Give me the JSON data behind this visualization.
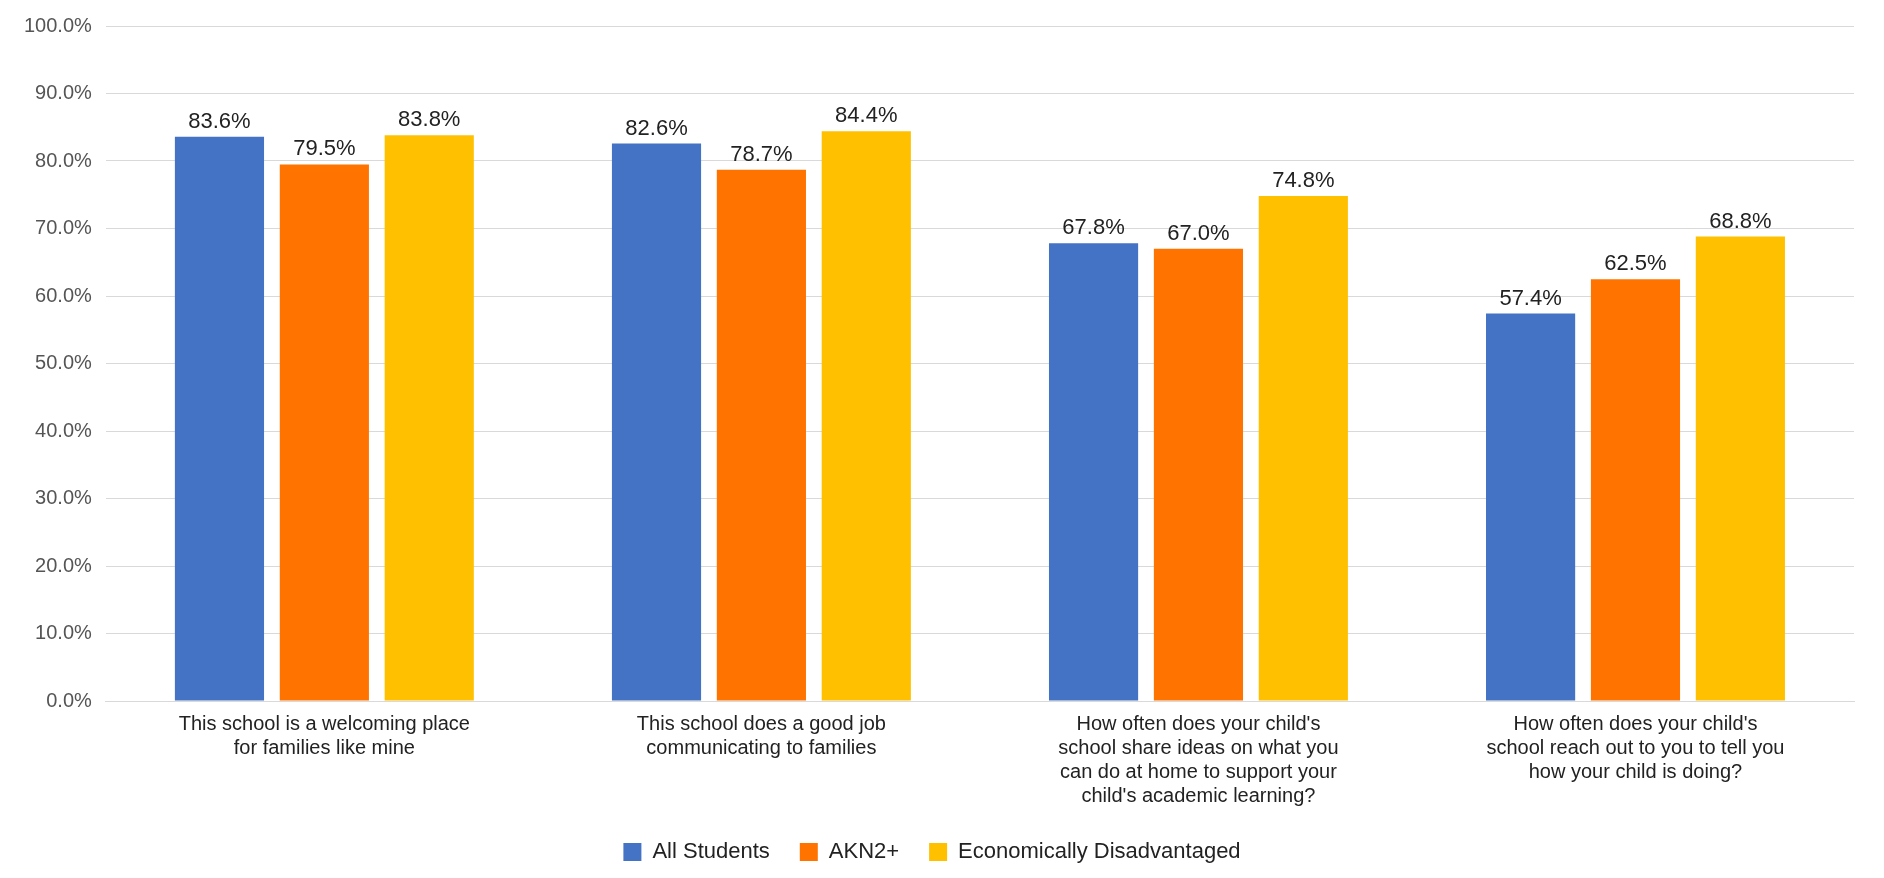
{
  "chart_data": {
    "type": "bar",
    "categories": [
      "This school is a welcoming place for families like mine",
      "This school does a good job communicating to families",
      "How often does your child's school share ideas on what you can do at home to support your child's academic learning?",
      "How often does your child's school reach out to you to tell you how your child is doing?"
    ],
    "series": [
      {
        "name": "All Students",
        "color": "#4472c4",
        "values": [
          83.6,
          82.6,
          67.8,
          57.4
        ],
        "value_labels": [
          "83.6%",
          "82.6%",
          "67.8%",
          "57.4%"
        ]
      },
      {
        "name": "AKN2+",
        "color": "#ff7300",
        "values": [
          79.5,
          78.7,
          67.0,
          62.5
        ],
        "value_labels": [
          "79.5%",
          "78.7%",
          "67.0%",
          "62.5%"
        ]
      },
      {
        "name": "Economically Disadvantaged",
        "color": "#ffc000",
        "values": [
          83.8,
          84.4,
          74.8,
          68.8
        ],
        "value_labels": [
          "83.8%",
          "84.4%",
          "74.8%",
          "68.8%"
        ]
      }
    ],
    "ylim": [
      0,
      100
    ],
    "yticks": [
      {
        "value": 0,
        "label": "0.0%"
      },
      {
        "value": 10,
        "label": "10.0%"
      },
      {
        "value": 20,
        "label": "20.0%"
      },
      {
        "value": 30,
        "label": "30.0%"
      },
      {
        "value": 40,
        "label": "40.0%"
      },
      {
        "value": 50,
        "label": "50.0%"
      },
      {
        "value": 60,
        "label": "60.0%"
      },
      {
        "value": 70,
        "label": "70.0%"
      },
      {
        "value": 80,
        "label": "80.0%"
      },
      {
        "value": 90,
        "label": "90.0%"
      },
      {
        "value": 100,
        "label": "100.0%"
      }
    ],
    "grid": "y",
    "legend": "bottom"
  }
}
